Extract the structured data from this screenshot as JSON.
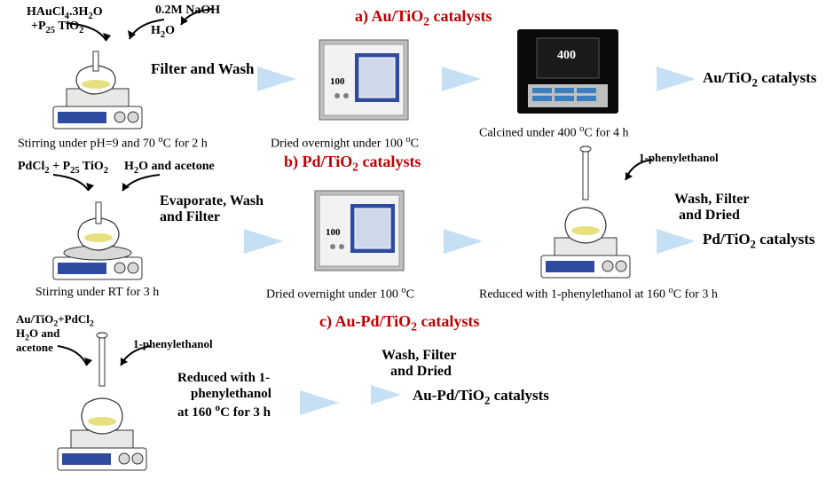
{
  "colors": {
    "title": "#c00000",
    "arrow": "#c5dff5",
    "ink": "#000000",
    "oven_body": "#bfbfbf",
    "oven_front": "#f2f2f2",
    "oven_door": "#2f4b9f",
    "oven_knob": "#808080",
    "muffle_body": "#0a0a0a",
    "muffle_panel": "#bfbfbf",
    "muffle_btn": "#3a7fbf",
    "stir_base": "#ffffff",
    "stir_panel": "#2f4b9f",
    "stir_plate": "#d9d9d9",
    "flask_liquid": "#e6e07f",
    "flask_outline": "#333333"
  },
  "a": {
    "title": "a) Au/TiO₂ catalysts",
    "reagents_l1": "HAuCl₄.3H₂O",
    "reagents_l2": "+P25 TiO₂",
    "inlet1": "0.2M NaOH",
    "inlet2": "H₂O",
    "step1": "Filter and Wash",
    "cond": "Stirring under pH=9 and 70 °C for 2 h",
    "oven_lbl": "Dried overnight under 100 °C",
    "oven_disp": "100",
    "calc_lbl": "Calcined under 400 °C for 4 h",
    "calc_disp": "400",
    "product": "Au/TiO₂ catalysts"
  },
  "b": {
    "title": "b) Pd/TiO₂ catalysts",
    "reagents_l1": "PdCl₂ + P25 TiO₂",
    "reagents_l2": "H₂O and acetone",
    "step1_l1": "Evaporate, Wash",
    "step1_l2": "and Filter",
    "cond": "Stirring under RT for 3 h",
    "oven_lbl": "Dried overnight under 100 °C",
    "oven_disp": "100",
    "red_in": "1-phenylethanol",
    "red_lbl": "Reduced with 1-phenylethanol at 160 °C for 3 h",
    "step2_l1": "Wash, Filter",
    "step2_l2": "and Dried",
    "product": "Pd/TiO₂ catalysts"
  },
  "c": {
    "title": "c) Au-Pd/TiO₂ catalysts",
    "reagents_l1": "Au/TiO₂+PdCl₂",
    "reagents_l2": "H₂O and",
    "reagents_l3": "acetone",
    "red_in": "1-phenylethanol",
    "red_l1": "Reduced with 1-",
    "red_l2": "phenylethanol",
    "red_l3": "at 160 °C for 3 h",
    "step_l1": "Wash, Filter",
    "step_l2": "and Dried",
    "product": "Au-Pd/TiO₂ catalysts"
  }
}
